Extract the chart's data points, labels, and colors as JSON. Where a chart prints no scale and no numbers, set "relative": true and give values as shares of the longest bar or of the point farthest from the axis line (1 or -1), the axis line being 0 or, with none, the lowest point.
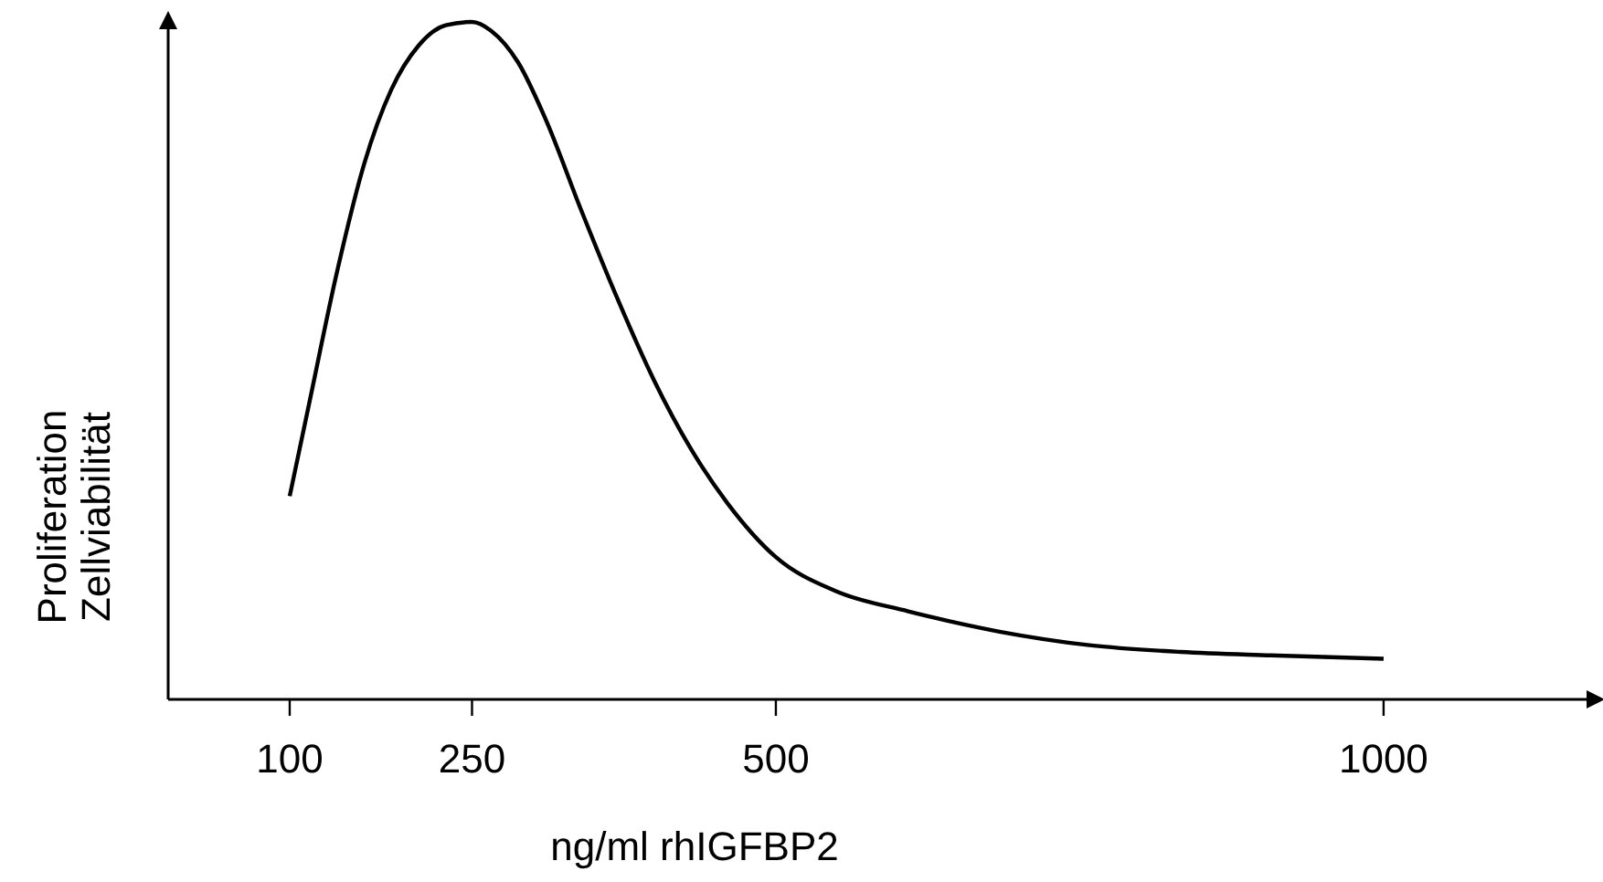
{
  "chart_data": {
    "type": "line",
    "relative": true,
    "xlabel": "ng/ml rhIGFBP2",
    "ylabel": "Proliferation\nZellviabilität",
    "xlim": [
      0,
      1170
    ],
    "xticks": [
      100,
      250,
      500,
      1000
    ],
    "grid": false,
    "marker": "none",
    "line_style": "solid",
    "series": [
      {
        "color": "#000000",
        "x": [
          100,
          116.4,
          138.8,
          161.2,
          183.6,
          206,
          228.4,
          250,
          265.7,
          288,
          310.4,
          340.3,
          370,
          400,
          430,
          460,
          500,
          549,
          609,
          684,
          758,
          833,
          907,
          1000
        ],
        "values": [
          0.3,
          0.44,
          0.63,
          0.79,
          0.9,
          0.965,
          0.995,
          1,
          0.987,
          0.94,
          0.857,
          0.72,
          0.59,
          0.47,
          0.37,
          0.29,
          0.21,
          0.16,
          0.13,
          0.1,
          0.08,
          0.07,
          0.065,
          0.06
        ]
      }
    ]
  }
}
